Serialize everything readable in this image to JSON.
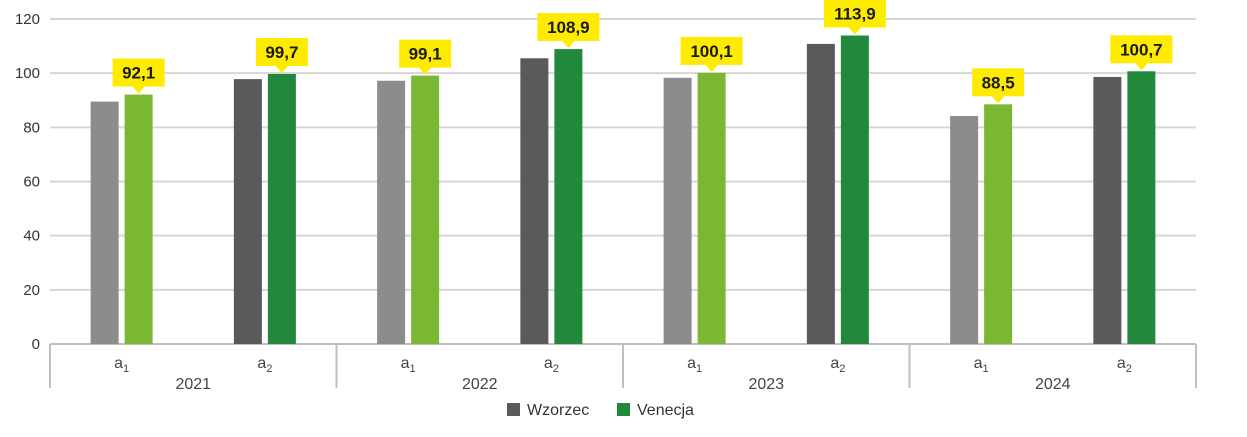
{
  "chart_data": {
    "type": "bar",
    "title": "",
    "xlabel": "",
    "ylabel": "",
    "ylim": [
      0,
      120
    ],
    "yticks": [
      0,
      20,
      40,
      60,
      80,
      100,
      120
    ],
    "grid": true,
    "legend_position": "bottom-center",
    "years": [
      "2021",
      "2022",
      "2023",
      "2024"
    ],
    "groups": [
      {
        "year": "2021",
        "label": "a",
        "sub": "1",
        "wzorzec": 89.5,
        "venecja": 92.1,
        "venecja_label": "92,1"
      },
      {
        "year": "2021",
        "label": "a",
        "sub": "2",
        "wzorzec": 97.8,
        "venecja": 99.7,
        "venecja_label": "99,7"
      },
      {
        "year": "2022",
        "label": "a",
        "sub": "1",
        "wzorzec": 97.2,
        "venecja": 99.1,
        "venecja_label": "99,1"
      },
      {
        "year": "2022",
        "label": "a",
        "sub": "2",
        "wzorzec": 105.5,
        "venecja": 108.9,
        "venecja_label": "108,9"
      },
      {
        "year": "2023",
        "label": "a",
        "sub": "1",
        "wzorzec": 98.3,
        "venecja": 100.1,
        "venecja_label": "100,1"
      },
      {
        "year": "2023",
        "label": "a",
        "sub": "2",
        "wzorzec": 110.8,
        "venecja": 113.9,
        "venecja_label": "113,9"
      },
      {
        "year": "2024",
        "label": "a",
        "sub": "1",
        "wzorzec": 84.2,
        "venecja": 88.5,
        "venecja_label": "88,5"
      },
      {
        "year": "2024",
        "label": "a",
        "sub": "2",
        "wzorzec": 98.6,
        "venecja": 100.7,
        "venecja_label": "100,7"
      }
    ],
    "series": [
      {
        "name": "Wzorzec",
        "colors": {
          "a1": "#8c8c8c",
          "a2": "#5a5a5a"
        }
      },
      {
        "name": "Venecja",
        "colors": {
          "a1": "#7ab833",
          "a2": "#22893c"
        }
      }
    ],
    "legend": [
      {
        "name": "Wzorzec",
        "color": "#5a5a5a"
      },
      {
        "name": "Venecja",
        "color": "#22893c"
      }
    ],
    "label_bg": "#ffeb00"
  }
}
